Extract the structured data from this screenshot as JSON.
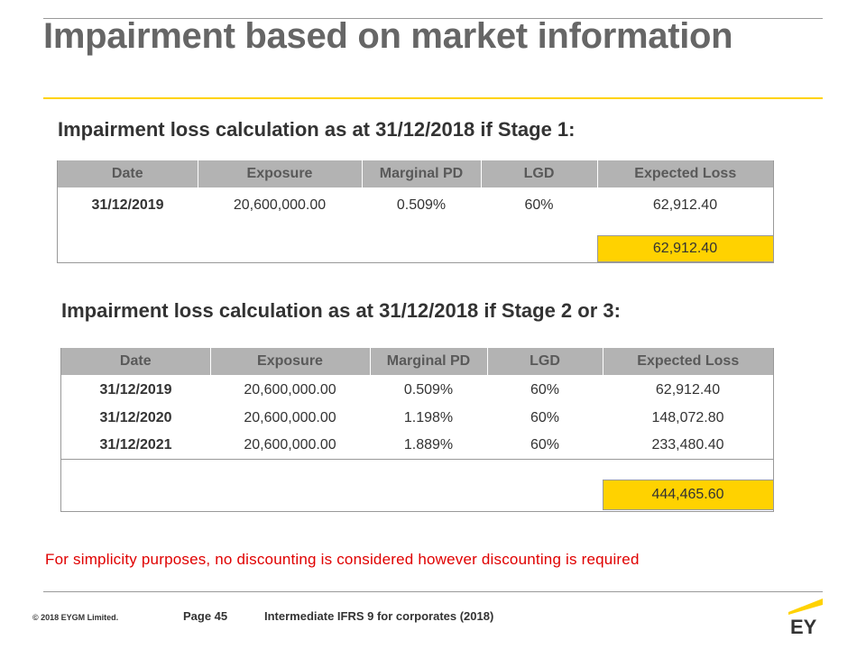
{
  "title": "Impairment based on market information",
  "section1": {
    "heading": "Impairment loss calculation as at 31/12/2018 if Stage 1:",
    "columns": [
      "Date",
      "Exposure",
      "Marginal PD",
      "LGD",
      "Expected Loss"
    ],
    "rows": [
      {
        "date": "31/12/2019",
        "exposure": "20,600,000.00",
        "pd": "0.509%",
        "lgd": "60%",
        "el": "62,912.40"
      }
    ],
    "total": "62,912.40"
  },
  "section2": {
    "heading": "Impairment loss calculation as at 31/12/2018 if Stage 2 or 3:",
    "columns": [
      "Date",
      "Exposure",
      "Marginal PD",
      "LGD",
      "Expected Loss"
    ],
    "rows": [
      {
        "date": "31/12/2019",
        "exposure": "20,600,000.00",
        "pd": "0.509%",
        "lgd": "60%",
        "el": "62,912.40"
      },
      {
        "date": "31/12/2020",
        "exposure": "20,600,000.00",
        "pd": "1.198%",
        "lgd": "60%",
        "el": "148,072.80"
      },
      {
        "date": "31/12/2021",
        "exposure": "20,600,000.00",
        "pd": "1.889%",
        "lgd": "60%",
        "el": "233,480.40"
      }
    ],
    "total": "444,465.60"
  },
  "note": "For simplicity purposes, no discounting is considered however discounting is required",
  "footer": {
    "copyright": "© 2018 EYGM Limited.",
    "page": "Page 45",
    "course": "Intermediate IFRS 9 for corporates (2018)",
    "logo_text": "EY"
  },
  "colors": {
    "accent_yellow": "#ffd200",
    "header_gray": "#b3b3b3",
    "note_red": "#e00000"
  }
}
